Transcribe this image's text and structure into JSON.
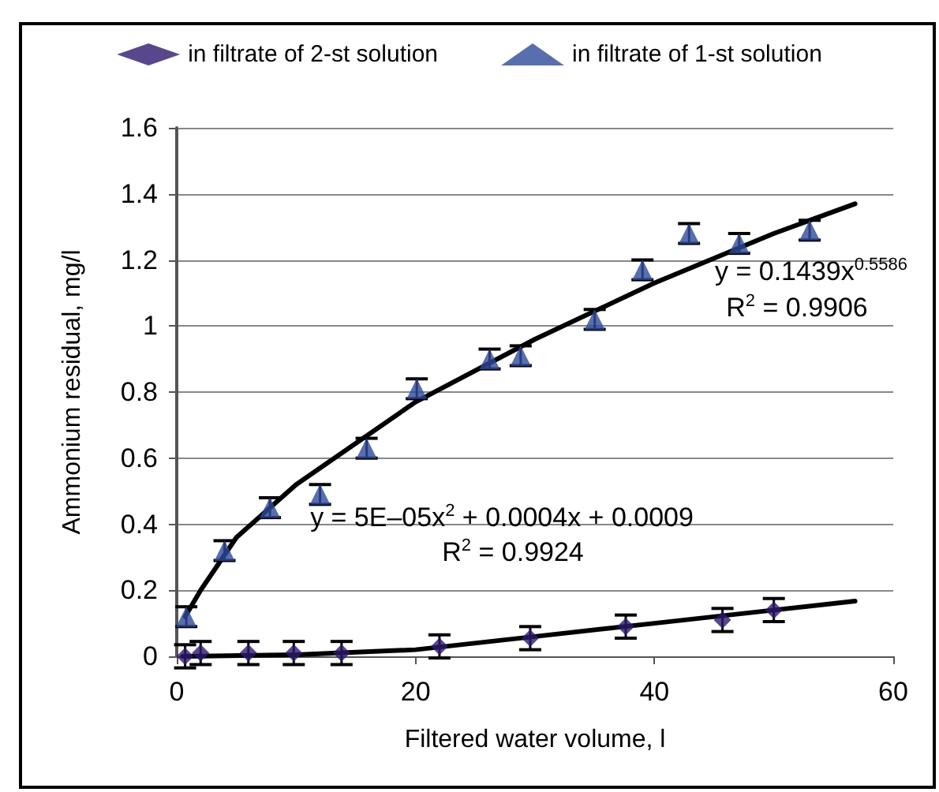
{
  "chart_data": {
    "type": "scatter",
    "xlabel": "Filtered water volume, l",
    "ylabel": "Ammonium residual, mg/l",
    "xlim": [
      0,
      60
    ],
    "xticks": [
      0,
      20,
      40,
      60
    ],
    "ylim": [
      0,
      1.6
    ],
    "yticks": [
      0,
      0.2,
      0.4,
      0.6,
      0.8,
      1,
      1.2,
      1.4,
      1.6
    ],
    "grid": "y",
    "legend": "top",
    "series": [
      {
        "name": "in filtrate of 2-st solution",
        "color": "#2e1a6e",
        "marker": "diamond",
        "x": [
          0.7,
          2,
          6,
          9.8,
          13.8,
          22,
          29.6,
          37.6,
          45.7,
          50
        ],
        "values": [
          0,
          0.01,
          0.01,
          0.01,
          0.01,
          0.03,
          0.055,
          0.09,
          0.11,
          0.14
        ],
        "errors": [
          0.035,
          0.035,
          0.035,
          0.035,
          0.035,
          0.035,
          0.035,
          0.035,
          0.035,
          0.035
        ]
      },
      {
        "name": "in filtrate of 1-st solution",
        "color": "#2f4a9a",
        "marker": "triangle",
        "x": [
          0.8,
          4,
          7.8,
          12,
          15.9,
          20.1,
          26.2,
          28.8,
          35,
          39,
          42.9,
          47.1,
          53
        ],
        "values": [
          0.12,
          0.32,
          0.45,
          0.49,
          0.63,
          0.81,
          0.9,
          0.91,
          1.02,
          1.17,
          1.28,
          1.25,
          1.29
        ],
        "errors": [
          0.03,
          0.03,
          0.03,
          0.03,
          0.03,
          0.03,
          0.03,
          0.03,
          0.03,
          0.03,
          0.03,
          0.03,
          0.03
        ]
      },
      {
        "type": "line",
        "color": "#000000",
        "marker": "none",
        "x": [
          0.5,
          10,
          20,
          30,
          40,
          50,
          56.8
        ],
        "values": [
          0,
          0.005,
          0.02,
          0.06,
          0.1,
          0.14,
          0.167
        ]
      },
      {
        "type": "line",
        "color": "#000000",
        "marker": "none",
        "x": [
          0.7,
          2,
          5,
          10,
          20,
          30,
          40,
          50,
          56.8
        ],
        "values": [
          0.12,
          0.2,
          0.36,
          0.52,
          0.77,
          0.96,
          1.13,
          1.28,
          1.37
        ]
      }
    ],
    "annotations": [
      "y = 0.1439x$^{0.5586}$",
      "R$^{2}$ = 0.9906",
      "y = 5E–05x$^{2}$ + 0.0004x + 0.0009",
      "R$^{2}$ = 0.9924"
    ]
  }
}
